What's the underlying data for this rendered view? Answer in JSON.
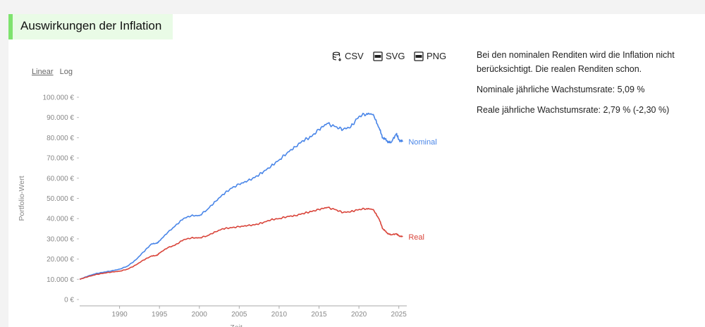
{
  "header": {
    "title": "Auswirkungen der Inflation"
  },
  "scale_toggle": {
    "linear": "Linear",
    "log": "Log"
  },
  "exports": [
    {
      "label": "CSV",
      "icon": "database-download-icon"
    },
    {
      "label": "SVG",
      "icon": "svg-file-icon"
    },
    {
      "label": "PNG",
      "icon": "png-file-icon"
    }
  ],
  "description": {
    "intro": "Bei den nominalen Renditen wird die Inflation nicht berücksichtigt. Die realen Renditen schon.",
    "nominal_rate": "Nominale jährliche Wachstumsrate: 5,09 %",
    "real_rate": "Reale jährliche Wachstumsrate: 2,79 % (-2,30 %)"
  },
  "chart_data": {
    "type": "line",
    "xlabel": "Zeit",
    "ylabel": "Portfolio-Wert",
    "xlim": [
      1985,
      2026
    ],
    "ylim": [
      0,
      100000
    ],
    "x_ticks": [
      1990,
      1995,
      2000,
      2005,
      2010,
      2015,
      2020,
      2025
    ],
    "y_ticks": [
      {
        "value": 0,
        "label": "0 €"
      },
      {
        "value": 10000,
        "label": "10.000 €"
      },
      {
        "value": 20000,
        "label": "20.000 €"
      },
      {
        "value": 30000,
        "label": "30.000 €"
      },
      {
        "value": 40000,
        "label": "40.000 €"
      },
      {
        "value": 50000,
        "label": "50.000 €"
      },
      {
        "value": 60000,
        "label": "60.000 €"
      },
      {
        "value": 70000,
        "label": "70.000 €"
      },
      {
        "value": 80000,
        "label": "80.000 €"
      },
      {
        "value": 90000,
        "label": "90.000 €"
      },
      {
        "value": 100000,
        "label": "100.000 €"
      }
    ],
    "grid": false,
    "series": [
      {
        "name": "Nominal",
        "color": "#4a86e8",
        "points": [
          [
            1985,
            10000
          ],
          [
            1986,
            11500
          ],
          [
            1987,
            12800
          ],
          [
            1988,
            13500
          ],
          [
            1989,
            14200
          ],
          [
            1990,
            15000
          ],
          [
            1991,
            16500
          ],
          [
            1992,
            19500
          ],
          [
            1993,
            23500
          ],
          [
            1994,
            27500
          ],
          [
            1994.7,
            27800
          ],
          [
            1995,
            29000
          ],
          [
            1996,
            33000
          ],
          [
            1997,
            36500
          ],
          [
            1998,
            40000
          ],
          [
            1999,
            41500
          ],
          [
            2000,
            41500
          ],
          [
            2001,
            44500
          ],
          [
            2002,
            48500
          ],
          [
            2003,
            52000
          ],
          [
            2004,
            55000
          ],
          [
            2005,
            57000
          ],
          [
            2006,
            58500
          ],
          [
            2007,
            60500
          ],
          [
            2008,
            63000
          ],
          [
            2009,
            66000
          ],
          [
            2010,
            69000
          ],
          [
            2011,
            72500
          ],
          [
            2012,
            75500
          ],
          [
            2013,
            78500
          ],
          [
            2014,
            80500
          ],
          [
            2015,
            84000
          ],
          [
            2016,
            87000
          ],
          [
            2017,
            85500
          ],
          [
            2018,
            84000
          ],
          [
            2019,
            85500
          ],
          [
            2020,
            90500
          ],
          [
            2021,
            92000
          ],
          [
            2021.8,
            91500
          ],
          [
            2022.5,
            85000
          ],
          [
            2023,
            80000
          ],
          [
            2023.5,
            78500
          ],
          [
            2024,
            77500
          ],
          [
            2024.7,
            82000
          ],
          [
            2025,
            79000
          ],
          [
            2025.5,
            78000
          ]
        ]
      },
      {
        "name": "Real",
        "color": "#d9443a",
        "points": [
          [
            1985,
            10000
          ],
          [
            1986,
            11200
          ],
          [
            1987,
            12300
          ],
          [
            1988,
            13000
          ],
          [
            1989,
            13600
          ],
          [
            1990,
            14000
          ],
          [
            1991,
            15000
          ],
          [
            1992,
            17000
          ],
          [
            1993,
            19500
          ],
          [
            1994,
            21500
          ],
          [
            1994.7,
            21800
          ],
          [
            1995,
            23000
          ],
          [
            1996,
            25500
          ],
          [
            1997,
            27000
          ],
          [
            1998,
            29500
          ],
          [
            1999,
            30500
          ],
          [
            2000,
            30500
          ],
          [
            2001,
            31500
          ],
          [
            2002,
            33500
          ],
          [
            2003,
            35000
          ],
          [
            2004,
            35500
          ],
          [
            2005,
            36000
          ],
          [
            2006,
            36500
          ],
          [
            2007,
            37000
          ],
          [
            2008,
            38000
          ],
          [
            2009,
            39500
          ],
          [
            2010,
            40000
          ],
          [
            2011,
            41000
          ],
          [
            2012,
            41500
          ],
          [
            2013,
            42500
          ],
          [
            2014,
            43500
          ],
          [
            2015,
            44500
          ],
          [
            2016,
            45500
          ],
          [
            2017,
            44500
          ],
          [
            2018,
            43000
          ],
          [
            2019,
            43500
          ],
          [
            2020,
            44500
          ],
          [
            2021,
            45000
          ],
          [
            2021.8,
            44500
          ],
          [
            2022.5,
            40000
          ],
          [
            2023,
            35000
          ],
          [
            2023.5,
            33000
          ],
          [
            2024,
            32000
          ],
          [
            2024.7,
            32500
          ],
          [
            2025,
            31500
          ],
          [
            2025.5,
            31000
          ]
        ]
      }
    ]
  }
}
